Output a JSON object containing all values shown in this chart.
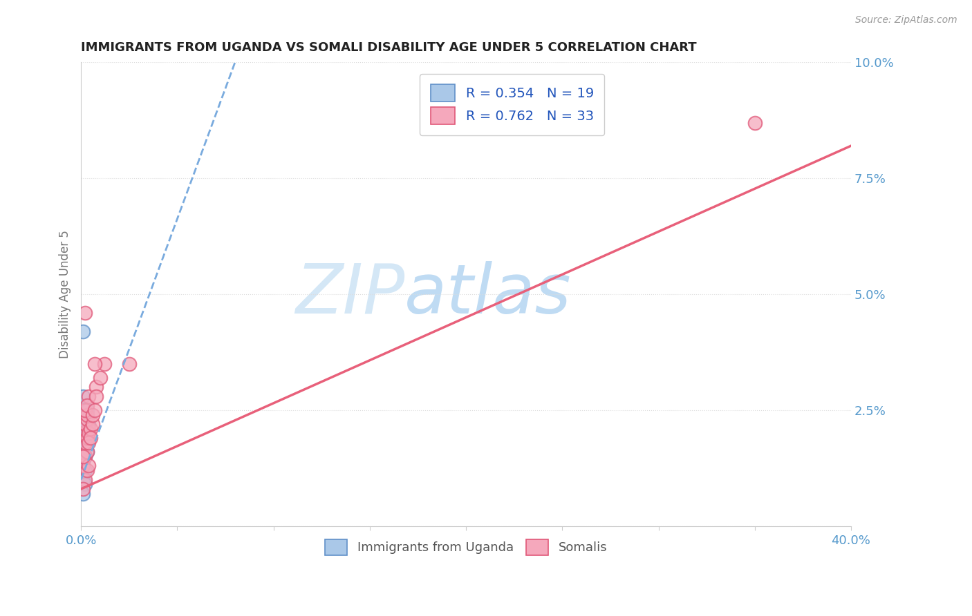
{
  "title": "IMMIGRANTS FROM UGANDA VS SOMALI DISABILITY AGE UNDER 5 CORRELATION CHART",
  "source": "Source: ZipAtlas.com",
  "ylabel": "Disability Age Under 5",
  "xlim": [
    0.0,
    0.4
  ],
  "ylim": [
    0.0,
    0.1
  ],
  "xticks": [
    0.0,
    0.05,
    0.1,
    0.15,
    0.2,
    0.25,
    0.3,
    0.35,
    0.4
  ],
  "yticks": [
    0.0,
    0.025,
    0.05,
    0.075,
    0.1
  ],
  "uganda_R": 0.354,
  "uganda_N": 19,
  "somali_R": 0.762,
  "somali_N": 33,
  "uganda_color": "#aac8e8",
  "somali_color": "#f5a8bc",
  "uganda_edge_color": "#6090c8",
  "somali_edge_color": "#e05878",
  "uganda_line_color": "#7aabde",
  "somali_line_color": "#e8607a",
  "background_color": "#ffffff",
  "grid_color": "#dddddd",
  "watermark": "ZIPAtlas",
  "watermark_color_zip": "#b8d8f0",
  "watermark_color_atlas": "#80b8e8",
  "axis_tick_color": "#5599cc",
  "legend_text_color": "#2255bb",
  "legend_N_color": "#cc2222",
  "source_color": "#999999",
  "ylabel_color": "#777777",
  "title_color": "#222222",
  "uganda_scatter_x": [
    0.001,
    0.002,
    0.003,
    0.002,
    0.001,
    0.003,
    0.002,
    0.001,
    0.004,
    0.003,
    0.002,
    0.001,
    0.003,
    0.002,
    0.001,
    0.002,
    0.001,
    0.002,
    0.001
  ],
  "uganda_scatter_y": [
    0.042,
    0.022,
    0.025,
    0.02,
    0.028,
    0.021,
    0.019,
    0.014,
    0.022,
    0.018,
    0.017,
    0.022,
    0.016,
    0.015,
    0.013,
    0.012,
    0.01,
    0.009,
    0.007
  ],
  "somali_scatter_x": [
    0.001,
    0.002,
    0.001,
    0.003,
    0.002,
    0.004,
    0.003,
    0.002,
    0.001,
    0.003,
    0.004,
    0.002,
    0.003,
    0.004,
    0.003,
    0.005,
    0.004,
    0.006,
    0.005,
    0.002,
    0.001,
    0.004,
    0.003,
    0.006,
    0.008,
    0.007,
    0.01,
    0.008,
    0.012,
    0.007,
    0.025,
    0.35,
    0.002
  ],
  "somali_scatter_y": [
    0.013,
    0.01,
    0.008,
    0.012,
    0.015,
    0.013,
    0.016,
    0.018,
    0.02,
    0.019,
    0.021,
    0.022,
    0.023,
    0.02,
    0.024,
    0.021,
    0.018,
    0.022,
    0.019,
    0.025,
    0.015,
    0.028,
    0.026,
    0.024,
    0.03,
    0.025,
    0.032,
    0.028,
    0.035,
    0.035,
    0.035,
    0.087,
    0.046
  ],
  "somali_line_x0": 0.0,
  "somali_line_y0": 0.008,
  "somali_line_x1": 0.4,
  "somali_line_y1": 0.082,
  "uganda_line_x0": 0.0,
  "uganda_line_y0": 0.01,
  "uganda_line_x1": 0.08,
  "uganda_line_y1": 0.1
}
